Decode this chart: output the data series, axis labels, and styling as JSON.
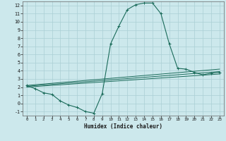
{
  "xlabel": "Humidex (Indice chaleur)",
  "bg_color": "#cce8ec",
  "grid_color": "#aacfd4",
  "line_color": "#1a6b5a",
  "xlim": [
    -0.5,
    23.5
  ],
  "ylim": [
    -1.5,
    12.5
  ],
  "xticks": [
    0,
    1,
    2,
    3,
    4,
    5,
    6,
    7,
    8,
    9,
    10,
    11,
    12,
    13,
    14,
    15,
    16,
    17,
    18,
    19,
    20,
    21,
    22,
    23
  ],
  "yticks": [
    -1,
    0,
    1,
    2,
    3,
    4,
    5,
    6,
    7,
    8,
    9,
    10,
    11,
    12
  ],
  "main_curve_x": [
    0,
    1,
    2,
    3,
    4,
    5,
    6,
    7,
    8,
    9,
    10,
    11,
    12,
    13,
    14,
    15,
    16,
    17,
    18,
    19,
    20,
    21,
    22,
    23
  ],
  "main_curve_y": [
    2.2,
    1.8,
    1.3,
    1.1,
    0.3,
    -0.2,
    -0.5,
    -1.0,
    -1.2,
    1.2,
    7.3,
    9.5,
    11.5,
    12.1,
    12.3,
    12.3,
    11.0,
    7.3,
    4.3,
    4.2,
    3.8,
    3.5,
    3.7,
    3.8
  ],
  "line1_x": [
    0,
    23
  ],
  "line1_y": [
    2.2,
    4.2
  ],
  "line2_x": [
    0,
    23
  ],
  "line2_y": [
    2.1,
    3.9
  ],
  "line3_x": [
    0,
    23
  ],
  "line3_y": [
    2.0,
    3.6
  ]
}
